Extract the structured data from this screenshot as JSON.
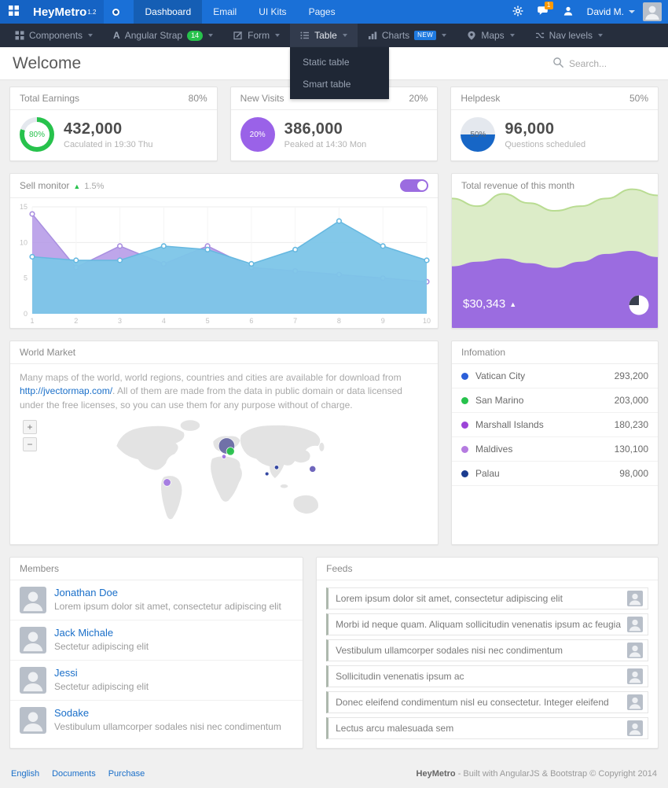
{
  "topbar": {
    "brand": "HeyMetro",
    "brand_version": "1.2",
    "nav": [
      {
        "label": "Dashboard"
      },
      {
        "label": "Email"
      },
      {
        "label": "UI Kits"
      },
      {
        "label": "Pages"
      }
    ],
    "chat_badge": "1",
    "user_name": "David M."
  },
  "menubar": {
    "items": [
      {
        "label": "Components"
      },
      {
        "label": "Angular Strap",
        "badge": "14"
      },
      {
        "label": "Form"
      },
      {
        "label": "Table"
      },
      {
        "label": "Charts",
        "badge": "NEW"
      },
      {
        "label": "Maps"
      },
      {
        "label": "Nav levels"
      }
    ],
    "table_dropdown": [
      {
        "label": "Static table"
      },
      {
        "label": "Smart table"
      }
    ]
  },
  "header": {
    "title": "Welcome",
    "search_placeholder": "Search..."
  },
  "stats": [
    {
      "title": "Total Earnings",
      "percent_label": "80%",
      "gauge_label": "80%",
      "percent_value": 80,
      "gauge": "donut",
      "color": "#27c24c",
      "value": "432,000",
      "subtitle": "Caculated in 19:30 Thu"
    },
    {
      "title": "New Visits",
      "percent_label": "20%",
      "gauge_label": "20%",
      "percent_value": 20,
      "gauge": "solid",
      "color": "#9a62e8",
      "value": "386,000",
      "subtitle": "Peaked at 14:30 Mon"
    },
    {
      "title": "Helpdesk",
      "percent_label": "50%",
      "gauge_label": "50%",
      "percent_value": 50,
      "gauge": "half",
      "color": "#1766c6",
      "value": "96,000",
      "subtitle": "Questions scheduled"
    }
  ],
  "sell_monitor": {
    "title": "Sell monitor",
    "trend_icon": "▲",
    "trend": "1.5%"
  },
  "revenue": {
    "title": "Total revenue of this month",
    "amount": "$30,343",
    "trend_icon": "▲"
  },
  "world_market": {
    "title": "World Market",
    "text_before_link": "Many maps of the world, world regions, countries and cities are available for download from ",
    "link": "http://jvectormap.com/",
    "text_after_link": ". All of them are made from the data in public domain or data licensed under the free licenses, so you can use them for any purpose without of charge.",
    "zoom_in": "+",
    "zoom_out": "−",
    "markers": [
      {
        "x": 225,
        "y": 60,
        "r": 15,
        "color": "#5c5d9e",
        "opacity": 0.85
      },
      {
        "x": 232,
        "y": 70,
        "r": 7.5,
        "color": "#27c24c",
        "opacity": 0.95
      },
      {
        "x": 220,
        "y": 80,
        "r": 4,
        "color": "#9b6ce0",
        "opacity": 0.9
      },
      {
        "x": 114,
        "y": 128,
        "r": 7,
        "color": "#9b6ce0",
        "opacity": 0.85
      },
      {
        "x": 300,
        "y": 112,
        "r": 3.5,
        "color": "#2b3f9e",
        "opacity": 0.95
      },
      {
        "x": 318,
        "y": 100,
        "r": 4,
        "color": "#2b3f9e",
        "opacity": 0.95
      },
      {
        "x": 385,
        "y": 103,
        "r": 6,
        "color": "#5f55b5",
        "opacity": 0.9
      }
    ]
  },
  "information": {
    "title": "Infomation",
    "rows": [
      {
        "dot": "#2b5fd9",
        "name": "Vatican City",
        "value": "293,200"
      },
      {
        "dot": "#27c24c",
        "name": "San Marino",
        "value": "203,000"
      },
      {
        "dot": "#9c44d8",
        "name": "Marshall Islands",
        "value": "180,230"
      },
      {
        "dot": "#b57be0",
        "name": "Maldives",
        "value": "130,100"
      },
      {
        "dot": "#1b3c8f",
        "name": "Palau",
        "value": "98,000"
      }
    ]
  },
  "members": {
    "title": "Members",
    "rows": [
      {
        "name": "Jonathan Doe",
        "desc": "Lorem ipsum dolor sit amet, consectetur adipiscing elit"
      },
      {
        "name": "Jack Michale",
        "desc": "Sectetur adipiscing elit"
      },
      {
        "name": "Jessi",
        "desc": "Sectetur adipiscing elit"
      },
      {
        "name": "Sodake",
        "desc": "Vestibulum ullamcorper sodales nisi nec condimentum"
      }
    ]
  },
  "feeds": {
    "title": "Feeds",
    "rows": [
      {
        "text": "Lorem ipsum dolor sit amet, consectetur adipiscing elit"
      },
      {
        "text": "Morbi id neque quam. Aliquam sollicitudin venenatis ipsum ac feugia"
      },
      {
        "text": "Vestibulum ullamcorper sodales nisi nec condimentum"
      },
      {
        "text": "Sollicitudin venenatis ipsum ac"
      },
      {
        "text": "Donec eleifend condimentum nisl eu consectetur. Integer eleifend"
      },
      {
        "text": "Lectus arcu malesuada sem"
      }
    ]
  },
  "footer": {
    "links": [
      {
        "label": "English"
      },
      {
        "label": "Documents"
      },
      {
        "label": "Purchase"
      }
    ],
    "brand": "HeyMetro",
    "credit": " - Built with AngularJS & Bootstrap © Copyright 2014"
  },
  "chart_data": [
    {
      "id": "sell_monitor",
      "type": "area",
      "title": "Sell monitor",
      "x": [
        1,
        2,
        3,
        4,
        5,
        6,
        7,
        8,
        9,
        10
      ],
      "series": [
        {
          "name": "purple-series",
          "color": "#b79ce8",
          "stroke": "#a98fe0",
          "opacity": 0.9,
          "values": [
            14,
            6.5,
            9.5,
            7,
            9.5,
            6.5,
            6,
            5.5,
            5,
            4.5
          ]
        },
        {
          "name": "blue-series",
          "color": "#7cc5e8",
          "stroke": "#66b8e0",
          "opacity": 0.95,
          "values": [
            8,
            7.5,
            7.5,
            9.5,
            9,
            7,
            9,
            13,
            9.5,
            7.5
          ]
        }
      ],
      "ylim": [
        0,
        15
      ],
      "yticks": [
        0,
        5,
        10,
        15
      ],
      "grid": true,
      "legend": "none"
    },
    {
      "id": "revenue",
      "type": "area",
      "title": "Total revenue of this month",
      "label": "$30,343",
      "series": [
        {
          "name": "upper-green",
          "color": "#dcecc8",
          "stroke": "#b9dc92",
          "values": [
            84,
            79,
            87,
            81,
            76,
            79,
            84,
            90,
            86
          ]
        },
        {
          "name": "lower-purple",
          "color": "#9b6ce0",
          "stroke": "",
          "values": [
            40,
            43,
            45,
            42,
            39,
            43,
            48,
            50,
            46
          ]
        }
      ],
      "ylim": [
        0,
        100
      ]
    }
  ]
}
